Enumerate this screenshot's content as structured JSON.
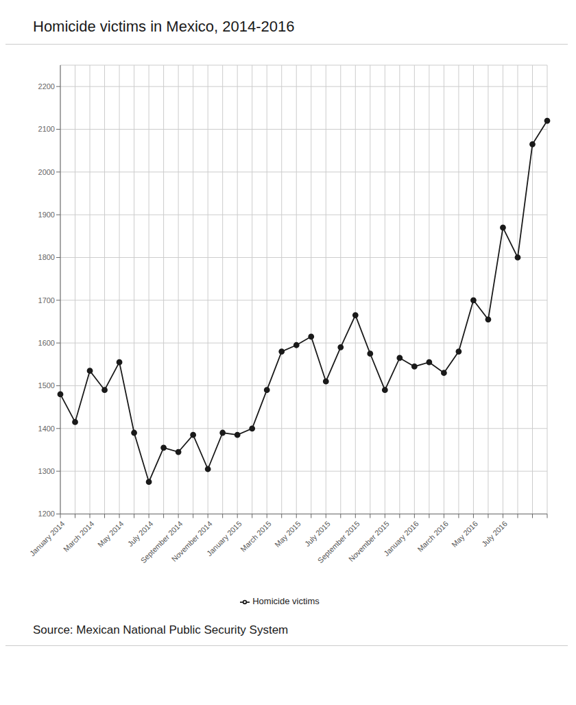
{
  "chart_data": {
    "type": "line",
    "title": "Homicide victims in Mexico, 2014-2016",
    "annotations": [
      "Source: Mexican National Public Security System"
    ],
    "categories": [
      "January 2014",
      null,
      "March 2014",
      null,
      "May 2014",
      null,
      "July 2014",
      null,
      "September 2014",
      null,
      "November 2014",
      null,
      "January 2015",
      null,
      "March 2015",
      null,
      "May 2015",
      null,
      "July 2015",
      null,
      "September 2015",
      null,
      "November 2015",
      null,
      "January 2016",
      null,
      "March 2016",
      null,
      "May 2016",
      null,
      "July 2016",
      null,
      null,
      null
    ],
    "series": [
      {
        "name": "Homicide victims",
        "color": "#1a1a1a",
        "marker": "circle",
        "values": [
          1480,
          1415,
          1535,
          1490,
          1555,
          1390,
          1275,
          1355,
          1345,
          1385,
          1305,
          1390,
          1385,
          1400,
          1490,
          1580,
          1595,
          1615,
          1510,
          1590,
          1665,
          1575,
          1490,
          1565,
          1545,
          1555,
          1530,
          1580,
          1700,
          1655,
          1870,
          1800,
          2065,
          2120
        ]
      }
    ],
    "ylim": [
      1200,
      2250
    ],
    "yticks": [
      1200,
      1300,
      1400,
      1500,
      1600,
      1700,
      1800,
      1900,
      2000,
      2100,
      2200
    ],
    "grid": true,
    "legend": "bottom"
  }
}
